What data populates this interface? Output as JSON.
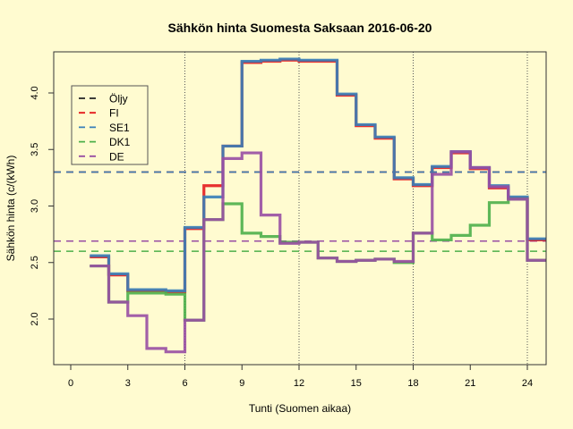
{
  "chart_data": {
    "type": "line",
    "title": "Sähkön hinta Suomesta Saksaan 2016-06-20",
    "xlabel": "Tunti (Suomen aikaa)",
    "ylabel": "Sähkön hinta (c/(kWh)",
    "xlim": [
      0,
      25
    ],
    "ylim": [
      1.6,
      4.4
    ],
    "xticks": [
      0,
      3,
      6,
      9,
      12,
      15,
      18,
      21,
      24
    ],
    "yticks": [
      "2.0",
      "2.5",
      "3.0",
      "3.5",
      "4.0"
    ],
    "vlines": [
      6,
      12,
      18,
      24
    ],
    "legend_position": "top-left",
    "x": [
      1,
      2,
      3,
      4,
      5,
      6,
      7,
      8,
      9,
      10,
      11,
      12,
      13,
      14,
      15,
      16,
      17,
      18,
      19,
      20,
      21,
      22,
      23,
      24
    ],
    "series": [
      {
        "name": "FI",
        "color": "#e41a1c",
        "values": [
          2.55,
          2.39,
          2.25,
          2.25,
          2.24,
          2.8,
          3.18,
          3.53,
          4.27,
          4.28,
          4.29,
          4.28,
          4.28,
          3.98,
          3.71,
          3.6,
          3.24,
          3.18,
          3.34,
          3.47,
          3.33,
          3.16,
          3.07,
          2.7
        ]
      },
      {
        "name": "SE1",
        "color": "#377eb8",
        "values": [
          2.56,
          2.4,
          2.26,
          2.26,
          2.25,
          2.81,
          3.08,
          3.53,
          4.28,
          4.29,
          4.3,
          4.29,
          4.29,
          3.99,
          3.72,
          3.61,
          3.25,
          3.19,
          3.35,
          3.48,
          3.34,
          3.18,
          3.08,
          2.71
        ]
      },
      {
        "name": "DK1",
        "color": "#4daf4a",
        "values": [
          2.47,
          2.15,
          2.23,
          2.23,
          2.22,
          1.99,
          2.88,
          3.02,
          2.76,
          2.73,
          2.68,
          2.68,
          2.54,
          2.51,
          2.52,
          2.53,
          2.5,
          2.76,
          2.7,
          2.74,
          2.83,
          3.03,
          3.06,
          2.52
        ]
      },
      {
        "name": "DE",
        "color": "#984ea3",
        "values": [
          2.47,
          2.15,
          2.03,
          1.74,
          1.71,
          1.99,
          2.88,
          3.42,
          3.47,
          2.92,
          2.67,
          2.68,
          2.54,
          2.51,
          2.52,
          2.53,
          2.51,
          2.76,
          3.28,
          3.48,
          3.34,
          3.17,
          3.06,
          2.52
        ]
      }
    ],
    "reference_lines": [
      {
        "name": "Öljy",
        "color": "#222222",
        "value": 3.3
      },
      {
        "name": "FI",
        "color": "#e41a1c",
        "value": 3.3
      },
      {
        "name": "SE1",
        "color": "#377eb8",
        "value": 3.3
      },
      {
        "name": "DK1",
        "color": "#4daf4a",
        "value": 2.6
      },
      {
        "name": "DE",
        "color": "#984ea3",
        "value": 2.69
      }
    ],
    "legend": [
      "Öljy",
      "FI",
      "SE1",
      "DK1",
      "DE"
    ],
    "grid": false
  }
}
